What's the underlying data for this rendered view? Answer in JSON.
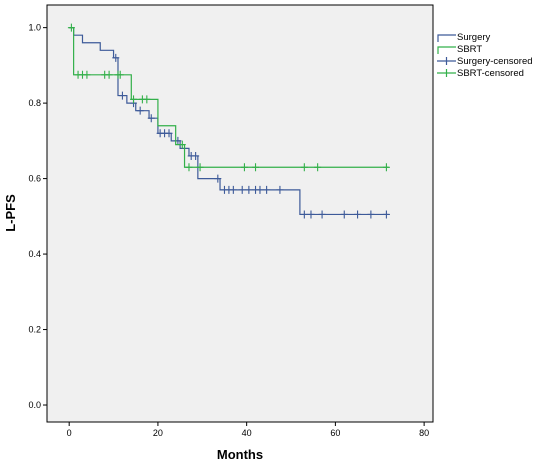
{
  "chart_data": {
    "type": "line",
    "subtype": "kaplan-meier",
    "xlabel": "Months",
    "ylabel": "L-PFS",
    "xlim": [
      -5,
      82
    ],
    "ylim": [
      -0.045,
      1.06
    ],
    "xticks": [
      0,
      20,
      40,
      60,
      80
    ],
    "yticks": [
      0.0,
      0.2,
      0.4,
      0.6,
      0.8,
      1.0
    ],
    "ytick_labels": [
      "0.0",
      "0.2",
      "0.4",
      "0.6",
      "0.8",
      "1.0"
    ],
    "legend_position": "right",
    "legend": [
      "Surgery",
      "SBRT",
      "Surgery-censored",
      "SBRT-censored"
    ],
    "series": [
      {
        "name": "Surgery",
        "color": "#3d5a99",
        "steps": [
          [
            0,
            1.0
          ],
          [
            1,
            0.98
          ],
          [
            3,
            0.96
          ],
          [
            7,
            0.94
          ],
          [
            10,
            0.92
          ],
          [
            11,
            0.82
          ],
          [
            13,
            0.8
          ],
          [
            15,
            0.78
          ],
          [
            18,
            0.76
          ],
          [
            20,
            0.72
          ],
          [
            23,
            0.7
          ],
          [
            25,
            0.68
          ],
          [
            27,
            0.66
          ],
          [
            29,
            0.6
          ],
          [
            34,
            0.57
          ],
          [
            52,
            0.505
          ],
          [
            72,
            0.505
          ]
        ],
        "censored": [
          10.5,
          12,
          14.5,
          16,
          18.5,
          20.5,
          21.5,
          22.5,
          24.5,
          27.5,
          28.5,
          33.5,
          35,
          36,
          37,
          39,
          40.5,
          42,
          43,
          44.5,
          47.5,
          53,
          54.5,
          57,
          62,
          65,
          68,
          71.5
        ]
      },
      {
        "name": "SBRT",
        "color": "#33b04a",
        "steps": [
          [
            0,
            1.0
          ],
          [
            1,
            0.875
          ],
          [
            14,
            0.81
          ],
          [
            20,
            0.74
          ],
          [
            24,
            0.69
          ],
          [
            26,
            0.63
          ],
          [
            72,
            0.63
          ]
        ],
        "censored": [
          0.5,
          2,
          3,
          4,
          8,
          9,
          11,
          11.5,
          14.5,
          16.5,
          17.5,
          25.5,
          27,
          29.5,
          39.5,
          42,
          53,
          56,
          71.5
        ]
      }
    ]
  }
}
